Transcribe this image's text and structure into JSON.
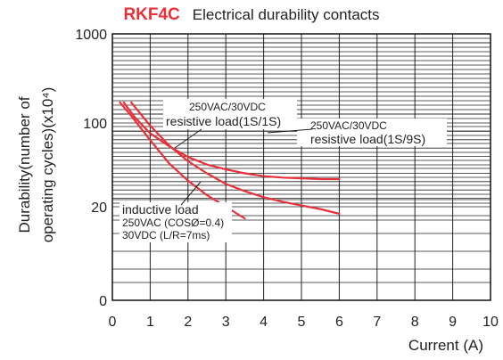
{
  "chart_data": {
    "type": "line",
    "title": "RKF4C",
    "subtitle": "Electrical durability contacts",
    "ylabel_lines": [
      "Durability(number of",
      "operating cycles)(x10⁴)"
    ],
    "xlabel": "Current (A)",
    "xlim": [
      0,
      10
    ],
    "x_ticks": [
      "0",
      "1",
      "2",
      "3",
      "4",
      "5",
      "6",
      "7",
      "8",
      "9",
      "10"
    ],
    "y_ticks": [
      "0",
      "20",
      "100",
      "1000"
    ],
    "y_tick_values": [
      0,
      20,
      100,
      1000
    ],
    "grid": true,
    "line_color": "#e8303a",
    "series": [
      {
        "x": [
          0.3,
          0.6,
          1.0,
          1.5,
          2.0,
          2.5,
          3.0,
          3.5,
          4.0,
          4.5,
          5.0,
          5.5,
          6.0
        ],
        "y": [
          170,
          115,
          82,
          64,
          52,
          45,
          41,
          38,
          36,
          35,
          34.5,
          34,
          34
        ]
      },
      {
        "x": [
          0.5,
          1.0,
          1.5,
          2.0,
          2.5,
          3.0,
          3.5,
          4.0,
          4.5,
          5.0,
          5.5,
          6.0
        ],
        "y": [
          170,
          95,
          65,
          48,
          38,
          31,
          27,
          24,
          22,
          20.5,
          19.5,
          18.5
        ]
      },
      {
        "x": [
          0.2,
          0.5,
          1.0,
          1.5,
          2.0,
          2.5,
          3.0,
          3.5
        ],
        "y": [
          170,
          120,
          72,
          46,
          33,
          25,
          20,
          17.5
        ]
      }
    ],
    "annotations": [
      {
        "lines": [
          "250VAC/30VDC",
          "resistive load(1S/1S)"
        ]
      },
      {
        "lines": [
          "250VAC/30VDC",
          "resistive load(1S/9S)"
        ]
      },
      {
        "lines": [
          "inductive load",
          "250VAC (COSØ=0.4)",
          "30VDC (L/R=7ms)"
        ]
      }
    ]
  }
}
